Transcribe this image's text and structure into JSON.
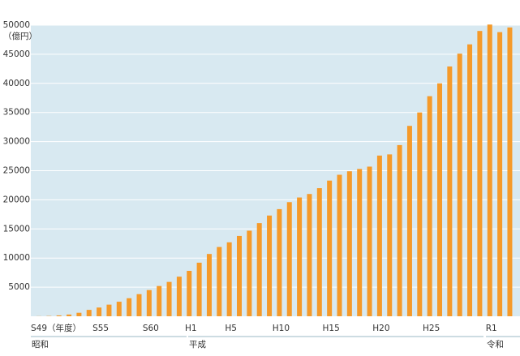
{
  "chart_data": {
    "type": "bar",
    "unit_label": "（億円）",
    "categories": [
      "S49（年度）",
      null,
      null,
      null,
      null,
      null,
      "S55",
      null,
      null,
      null,
      null,
      "S60",
      null,
      null,
      null,
      "H1",
      null,
      null,
      null,
      "H5",
      null,
      null,
      null,
      null,
      "H10",
      null,
      null,
      null,
      null,
      "H15",
      null,
      null,
      null,
      null,
      "H20",
      null,
      null,
      null,
      null,
      "H25",
      null,
      null,
      null,
      null,
      null,
      "R1",
      null,
      null
    ],
    "values": [
      20,
      50,
      150,
      300,
      600,
      1100,
      1500,
      2000,
      2500,
      3100,
      3800,
      4500,
      5200,
      5900,
      6800,
      7800,
      9200,
      10700,
      11900,
      12700,
      13800,
      14700,
      16000,
      17300,
      18400,
      19600,
      20400,
      21000,
      22000,
      23300,
      24300,
      24900,
      25300,
      25700,
      27600,
      27800,
      29400,
      32700,
      35000,
      37800,
      40000,
      42900,
      45100,
      46700,
      49000,
      50100,
      48800,
      49600
    ],
    "color": "#f59a2a",
    "eras": [
      "昭和",
      "平成",
      "令和"
    ],
    "ylim": [
      0,
      50000
    ],
    "yticks": [
      5000,
      10000,
      15000,
      20000,
      25000,
      30000,
      35000,
      40000,
      45000,
      50000
    ],
    "grid": true
  }
}
